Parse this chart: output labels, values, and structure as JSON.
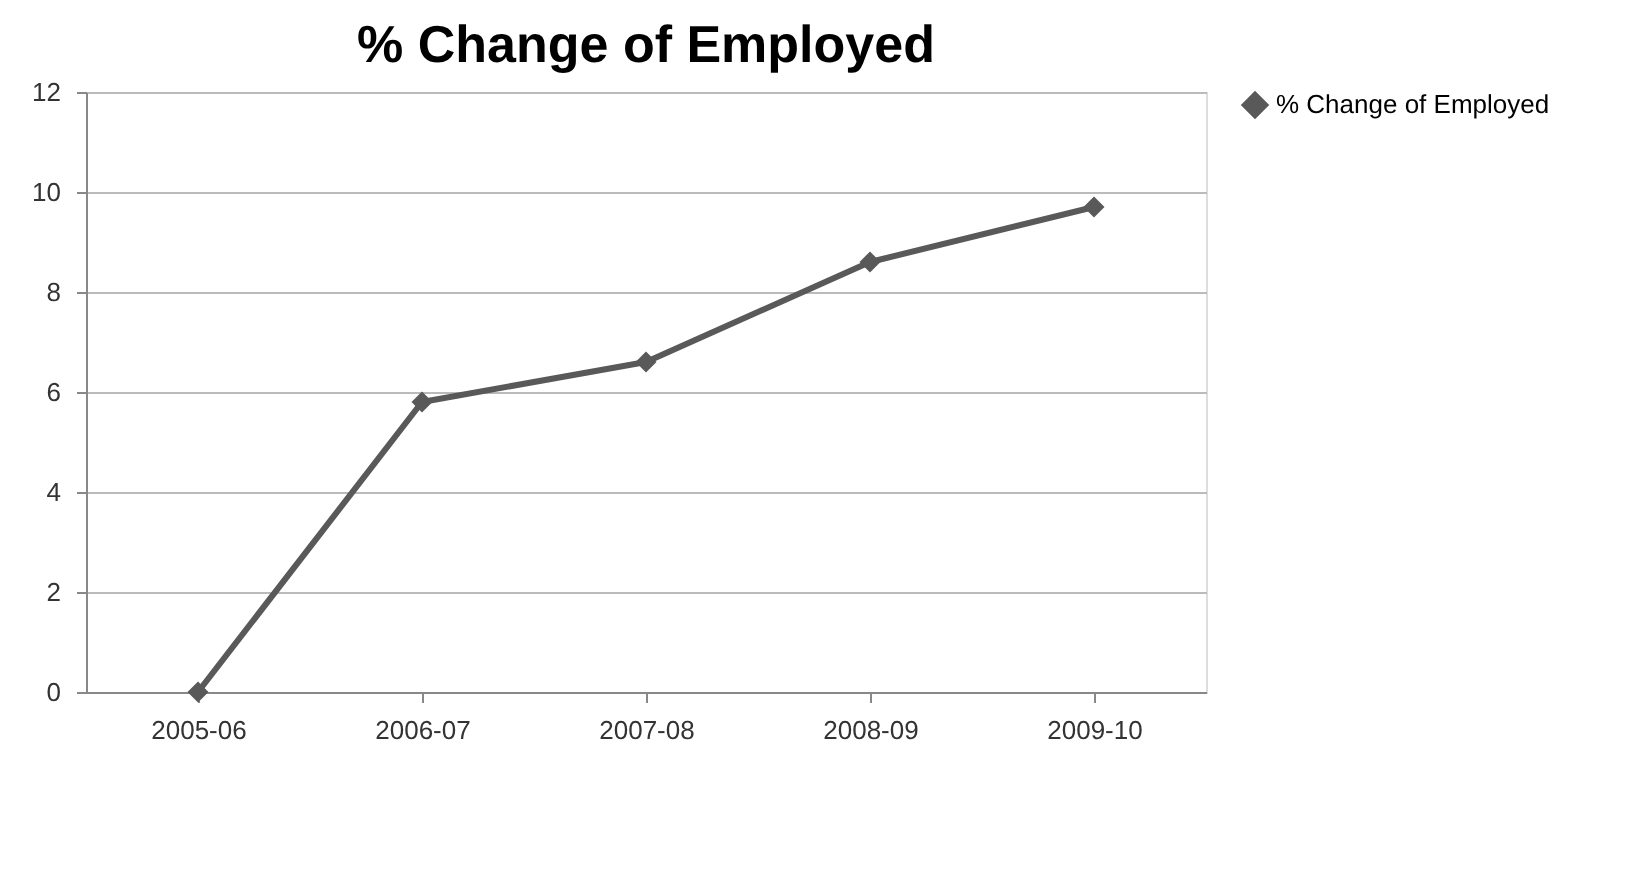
{
  "chart_data": {
    "type": "line",
    "title": "% Change of Employed",
    "categories": [
      "2005-06",
      "2006-07",
      "2007-08",
      "2008-09",
      "2009-10"
    ],
    "series": [
      {
        "name": "% Change of Employed",
        "color": "#595959",
        "values": [
          0,
          5.8,
          6.6,
          8.6,
          9.7
        ]
      }
    ],
    "ylim": [
      0,
      12
    ],
    "yticks": [
      0,
      2,
      4,
      6,
      8,
      10,
      12
    ],
    "grid": "y",
    "legend": "right",
    "marker": "diamond",
    "line_style": "solid"
  }
}
